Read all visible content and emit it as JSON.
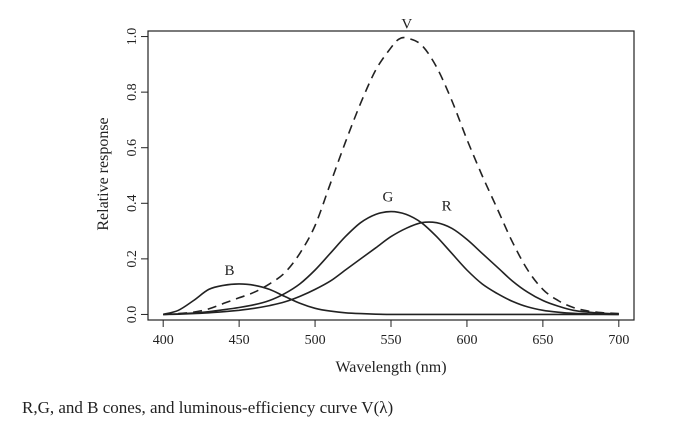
{
  "caption": "R,G, and B cones, and luminous-efficiency curve V(λ)",
  "chart_data": {
    "type": "line",
    "xlabel": "Wavelength (nm)",
    "ylabel": "Relative response",
    "xlim": [
      390,
      710
    ],
    "ylim": [
      -0.02,
      1.02
    ],
    "xticks": [
      400,
      450,
      500,
      550,
      600,
      650,
      700
    ],
    "xtick_labels": [
      "400",
      "450",
      "500",
      "550",
      "600",
      "650",
      "700"
    ],
    "yticks": [
      0.0,
      0.2,
      0.4,
      0.6,
      0.8,
      1.0
    ],
    "ytick_labels": [
      "0.0",
      "0.2",
      "0.4",
      "0.6",
      "0.8",
      "1.0"
    ],
    "grid": false,
    "series": [
      {
        "name": "V",
        "style": "dashed",
        "color": "#222222",
        "x": [
          400,
          410,
          420,
          430,
          440,
          450,
          460,
          470,
          480,
          490,
          500,
          510,
          520,
          530,
          540,
          550,
          555,
          560,
          570,
          580,
          590,
          600,
          610,
          620,
          630,
          640,
          650,
          660,
          670,
          680,
          690,
          700
        ],
        "y": [
          0.0,
          0.003,
          0.008,
          0.02,
          0.04,
          0.06,
          0.08,
          0.11,
          0.15,
          0.22,
          0.32,
          0.47,
          0.62,
          0.76,
          0.88,
          0.96,
          0.99,
          0.995,
          0.97,
          0.89,
          0.77,
          0.63,
          0.5,
          0.38,
          0.26,
          0.16,
          0.09,
          0.05,
          0.025,
          0.012,
          0.006,
          0.003
        ],
        "label_at": [
          563,
          1.0
        ]
      },
      {
        "name": "G",
        "style": "solid",
        "color": "#222222",
        "x": [
          400,
          410,
          420,
          430,
          440,
          450,
          460,
          470,
          480,
          490,
          500,
          510,
          520,
          530,
          540,
          550,
          560,
          570,
          580,
          590,
          600,
          610,
          620,
          630,
          640,
          650,
          660,
          670,
          680,
          690,
          700
        ],
        "y": [
          0.0,
          0.002,
          0.005,
          0.01,
          0.017,
          0.025,
          0.035,
          0.05,
          0.075,
          0.11,
          0.16,
          0.22,
          0.28,
          0.33,
          0.36,
          0.37,
          0.36,
          0.33,
          0.28,
          0.22,
          0.16,
          0.11,
          0.075,
          0.047,
          0.027,
          0.015,
          0.008,
          0.004,
          0.002,
          0.001,
          0.0
        ],
        "label_at": [
          548,
          0.37
        ]
      },
      {
        "name": "R",
        "style": "solid",
        "color": "#222222",
        "x": [
          400,
          410,
          420,
          430,
          440,
          450,
          460,
          470,
          480,
          490,
          500,
          510,
          520,
          530,
          540,
          550,
          560,
          570,
          580,
          590,
          600,
          610,
          620,
          630,
          640,
          650,
          660,
          670,
          680,
          690,
          700
        ],
        "y": [
          0.0,
          0.001,
          0.003,
          0.006,
          0.01,
          0.015,
          0.022,
          0.032,
          0.045,
          0.065,
          0.09,
          0.12,
          0.16,
          0.2,
          0.24,
          0.28,
          0.31,
          0.33,
          0.33,
          0.31,
          0.27,
          0.22,
          0.17,
          0.12,
          0.08,
          0.05,
          0.03,
          0.015,
          0.008,
          0.004,
          0.002
        ],
        "label_at": [
          584,
          0.33
        ]
      },
      {
        "name": "B",
        "style": "solid",
        "color": "#222222",
        "x": [
          400,
          410,
          420,
          430,
          440,
          450,
          460,
          470,
          480,
          490,
          500,
          510,
          520,
          530,
          540,
          550,
          560,
          600,
          650,
          700
        ],
        "y": [
          0.0,
          0.015,
          0.05,
          0.09,
          0.105,
          0.11,
          0.105,
          0.09,
          0.065,
          0.04,
          0.022,
          0.012,
          0.006,
          0.003,
          0.001,
          0.0,
          0.0,
          0.0,
          0.0,
          0.0
        ],
        "label_at": [
          445,
          0.11
        ]
      }
    ]
  }
}
